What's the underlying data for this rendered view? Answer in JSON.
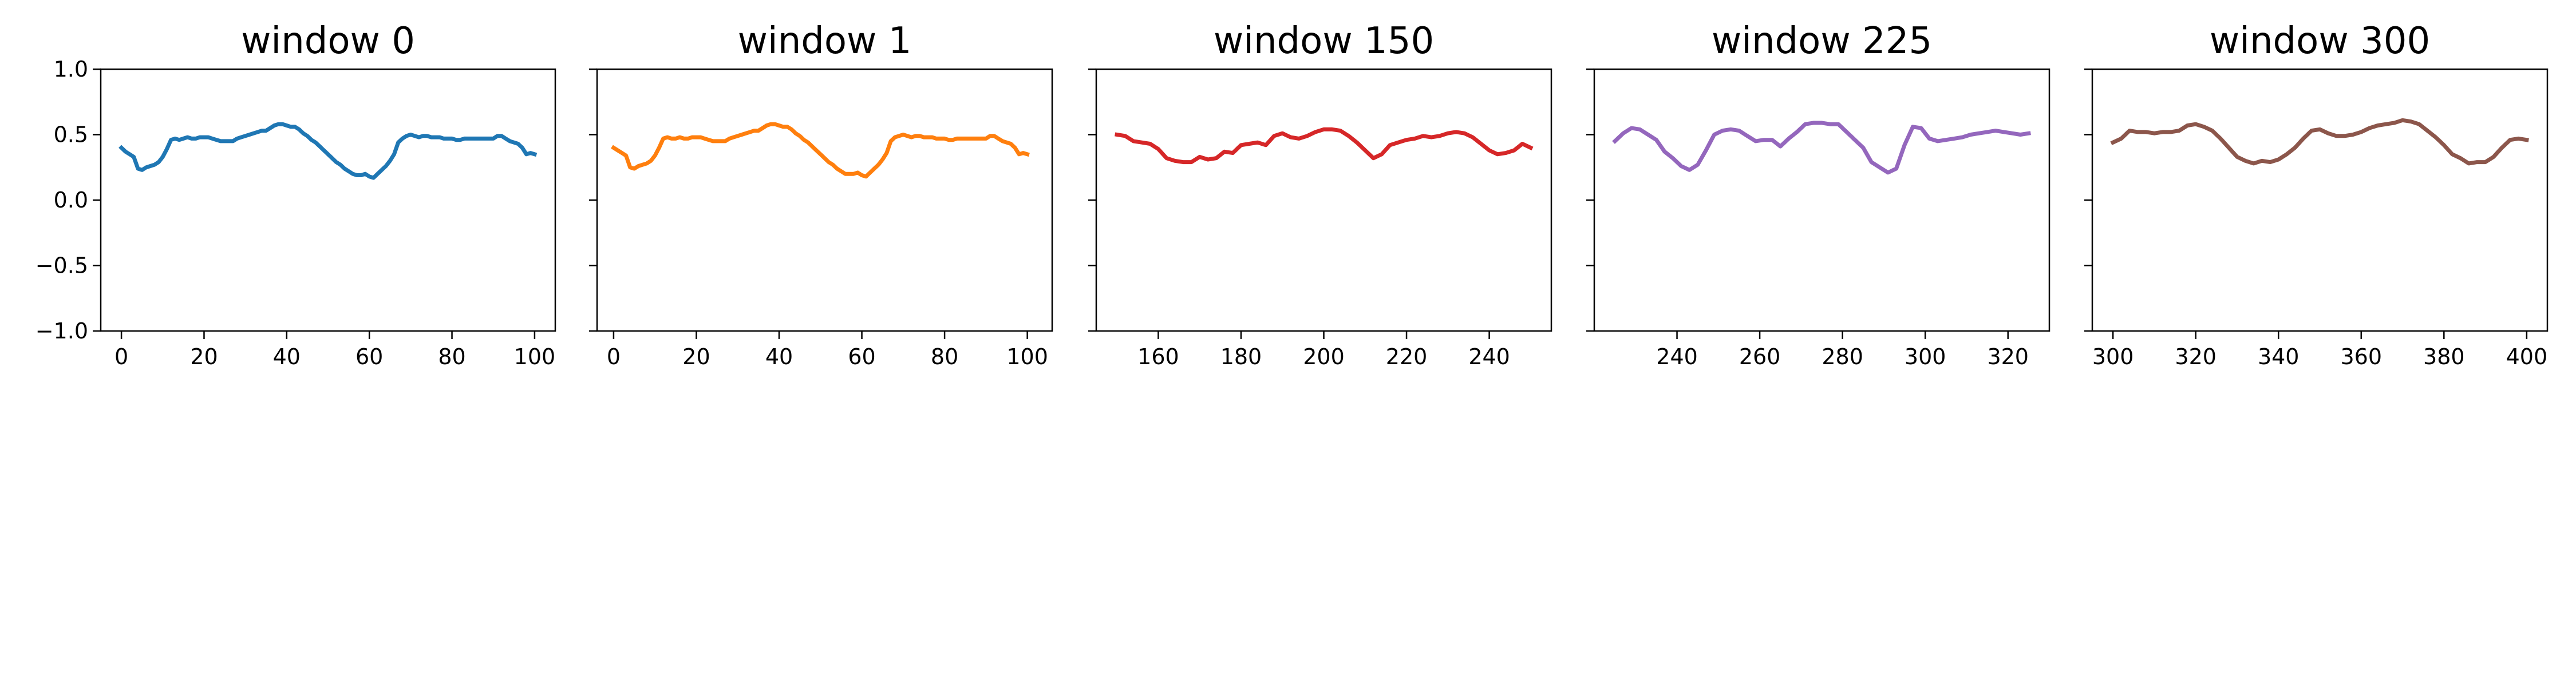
{
  "figure": {
    "background": "#ffffff"
  },
  "chart_data": [
    {
      "type": "line",
      "title": "window 0",
      "xlabel": "",
      "ylabel": "",
      "xlim": [
        -5,
        105
      ],
      "ylim": [
        -1.0,
        1.0
      ],
      "xticks": [
        0,
        20,
        40,
        60,
        80,
        100
      ],
      "yticks": [
        -1.0,
        -0.5,
        0.0,
        0.5,
        1.0
      ],
      "ytick_labels": [
        "−1.0",
        "−0.5",
        "0.0",
        "0.5",
        "1.0"
      ],
      "show_yticklabels": true,
      "grid": false,
      "series": [
        {
          "color": "#1f77b4",
          "x": [
            0,
            1,
            2,
            3,
            4,
            5,
            6,
            7,
            8,
            9,
            10,
            11,
            12,
            13,
            14,
            15,
            16,
            17,
            18,
            19,
            20,
            21,
            22,
            23,
            24,
            25,
            26,
            27,
            28,
            29,
            30,
            31,
            32,
            33,
            34,
            35,
            36,
            37,
            38,
            39,
            40,
            41,
            42,
            43,
            44,
            45,
            46,
            47,
            48,
            49,
            50,
            51,
            52,
            53,
            54,
            55,
            56,
            57,
            58,
            59,
            60,
            61,
            62,
            63,
            64,
            65,
            66,
            67,
            68,
            69,
            70,
            71,
            72,
            73,
            74,
            75,
            76,
            77,
            78,
            79,
            80,
            81,
            82,
            83,
            84,
            85,
            86,
            87,
            88,
            89,
            90,
            91,
            92,
            93,
            94,
            95,
            96,
            97,
            98,
            99,
            100
          ],
          "y": [
            0.4,
            0.37,
            0.35,
            0.33,
            0.24,
            0.23,
            0.25,
            0.26,
            0.27,
            0.29,
            0.33,
            0.39,
            0.46,
            0.47,
            0.46,
            0.47,
            0.48,
            0.47,
            0.47,
            0.48,
            0.48,
            0.48,
            0.47,
            0.46,
            0.45,
            0.45,
            0.45,
            0.45,
            0.47,
            0.48,
            0.49,
            0.5,
            0.51,
            0.52,
            0.53,
            0.53,
            0.55,
            0.57,
            0.58,
            0.58,
            0.57,
            0.56,
            0.56,
            0.54,
            0.51,
            0.49,
            0.46,
            0.44,
            0.41,
            0.38,
            0.35,
            0.32,
            0.29,
            0.27,
            0.24,
            0.22,
            0.2,
            0.19,
            0.19,
            0.2,
            0.18,
            0.17,
            0.2,
            0.23,
            0.26,
            0.3,
            0.35,
            0.44,
            0.47,
            0.49,
            0.5,
            0.49,
            0.48,
            0.49,
            0.49,
            0.48,
            0.48,
            0.48,
            0.47,
            0.47,
            0.47,
            0.46,
            0.46,
            0.47,
            0.47,
            0.47,
            0.47,
            0.47,
            0.47,
            0.47,
            0.47,
            0.49,
            0.49,
            0.47,
            0.45,
            0.44,
            0.43,
            0.4,
            0.35,
            0.36,
            0.35
          ]
        }
      ]
    },
    {
      "type": "line",
      "title": "window 1",
      "xlabel": "",
      "ylabel": "",
      "xlim": [
        -4,
        106
      ],
      "ylim": [
        -1.0,
        1.0
      ],
      "xticks": [
        0,
        20,
        40,
        60,
        80,
        100
      ],
      "yticks": [
        -1.0,
        -0.5,
        0.0,
        0.5,
        1.0
      ],
      "show_yticklabels": false,
      "grid": false,
      "series": [
        {
          "color": "#ff7f0e",
          "x": [
            0,
            1,
            2,
            3,
            4,
            5,
            6,
            7,
            8,
            9,
            10,
            11,
            12,
            13,
            14,
            15,
            16,
            17,
            18,
            19,
            20,
            21,
            22,
            23,
            24,
            25,
            26,
            27,
            28,
            29,
            30,
            31,
            32,
            33,
            34,
            35,
            36,
            37,
            38,
            39,
            40,
            41,
            42,
            43,
            44,
            45,
            46,
            47,
            48,
            49,
            50,
            51,
            52,
            53,
            54,
            55,
            56,
            57,
            58,
            59,
            60,
            61,
            62,
            63,
            64,
            65,
            66,
            67,
            68,
            69,
            70,
            71,
            72,
            73,
            74,
            75,
            76,
            77,
            78,
            79,
            80,
            81,
            82,
            83,
            84,
            85,
            86,
            87,
            88,
            89,
            90,
            91,
            92,
            93,
            94,
            95,
            96,
            97,
            98,
            99,
            100
          ],
          "y": [
            0.4,
            0.38,
            0.36,
            0.34,
            0.25,
            0.24,
            0.26,
            0.27,
            0.28,
            0.3,
            0.34,
            0.4,
            0.47,
            0.48,
            0.47,
            0.47,
            0.48,
            0.47,
            0.47,
            0.48,
            0.48,
            0.48,
            0.47,
            0.46,
            0.45,
            0.45,
            0.45,
            0.45,
            0.47,
            0.48,
            0.49,
            0.5,
            0.51,
            0.52,
            0.53,
            0.53,
            0.55,
            0.57,
            0.58,
            0.58,
            0.57,
            0.56,
            0.56,
            0.54,
            0.51,
            0.49,
            0.46,
            0.44,
            0.41,
            0.38,
            0.35,
            0.32,
            0.29,
            0.27,
            0.24,
            0.22,
            0.2,
            0.2,
            0.2,
            0.21,
            0.19,
            0.18,
            0.21,
            0.24,
            0.27,
            0.31,
            0.36,
            0.45,
            0.48,
            0.49,
            0.5,
            0.49,
            0.48,
            0.49,
            0.49,
            0.48,
            0.48,
            0.48,
            0.47,
            0.47,
            0.47,
            0.46,
            0.46,
            0.47,
            0.47,
            0.47,
            0.47,
            0.47,
            0.47,
            0.47,
            0.47,
            0.49,
            0.49,
            0.47,
            0.45,
            0.44,
            0.43,
            0.4,
            0.35,
            0.36,
            0.35
          ]
        }
      ]
    },
    {
      "type": "line",
      "title": "window 150",
      "xlabel": "",
      "ylabel": "",
      "xlim": [
        145,
        255
      ],
      "ylim": [
        -1.0,
        1.0
      ],
      "xticks": [
        160,
        180,
        200,
        220,
        240
      ],
      "yticks": [
        -1.0,
        -0.5,
        0.0,
        0.5,
        1.0
      ],
      "show_yticklabels": false,
      "grid": false,
      "series": [
        {
          "color": "#d62728",
          "x": [
            150,
            152,
            154,
            156,
            158,
            160,
            162,
            164,
            166,
            168,
            170,
            172,
            174,
            176,
            178,
            180,
            182,
            184,
            186,
            188,
            190,
            192,
            194,
            196,
            198,
            200,
            202,
            204,
            206,
            208,
            210,
            212,
            214,
            216,
            218,
            220,
            222,
            224,
            226,
            228,
            230,
            232,
            234,
            236,
            238,
            240,
            242,
            244,
            246,
            248,
            250
          ],
          "y": [
            0.5,
            0.49,
            0.45,
            0.44,
            0.43,
            0.39,
            0.32,
            0.3,
            0.29,
            0.29,
            0.33,
            0.31,
            0.32,
            0.37,
            0.36,
            0.42,
            0.43,
            0.44,
            0.42,
            0.49,
            0.51,
            0.48,
            0.47,
            0.49,
            0.52,
            0.54,
            0.54,
            0.53,
            0.49,
            0.44,
            0.38,
            0.32,
            0.35,
            0.42,
            0.44,
            0.46,
            0.47,
            0.49,
            0.48,
            0.49,
            0.51,
            0.52,
            0.51,
            0.48,
            0.43,
            0.38,
            0.35,
            0.36,
            0.38,
            0.43,
            0.4
          ]
        }
      ]
    },
    {
      "type": "line",
      "title": "window 225",
      "xlabel": "",
      "ylabel": "",
      "xlim": [
        220,
        330
      ],
      "ylim": [
        -1.0,
        1.0
      ],
      "xticks": [
        240,
        260,
        280,
        300,
        320
      ],
      "yticks": [
        -1.0,
        -0.5,
        0.0,
        0.5,
        1.0
      ],
      "show_yticklabels": false,
      "grid": false,
      "series": [
        {
          "color": "#9467bd",
          "x": [
            225,
            227,
            229,
            231,
            233,
            235,
            237,
            239,
            241,
            243,
            245,
            247,
            249,
            251,
            253,
            255,
            257,
            259,
            261,
            263,
            265,
            267,
            269,
            271,
            273,
            275,
            277,
            279,
            281,
            283,
            285,
            287,
            289,
            291,
            293,
            295,
            297,
            299,
            301,
            303,
            305,
            307,
            309,
            311,
            313,
            315,
            317,
            319,
            321,
            323,
            325
          ],
          "y": [
            0.45,
            0.51,
            0.55,
            0.54,
            0.5,
            0.46,
            0.37,
            0.32,
            0.26,
            0.23,
            0.27,
            0.38,
            0.5,
            0.53,
            0.54,
            0.53,
            0.49,
            0.45,
            0.46,
            0.46,
            0.41,
            0.47,
            0.52,
            0.58,
            0.59,
            0.59,
            0.58,
            0.58,
            0.52,
            0.46,
            0.4,
            0.29,
            0.25,
            0.21,
            0.24,
            0.42,
            0.56,
            0.55,
            0.47,
            0.45,
            0.46,
            0.47,
            0.48,
            0.5,
            0.51,
            0.52,
            0.53,
            0.52,
            0.51,
            0.5,
            0.51
          ]
        }
      ]
    },
    {
      "type": "line",
      "title": "window 300",
      "xlabel": "",
      "ylabel": "",
      "xlim": [
        295,
        405
      ],
      "ylim": [
        -1.0,
        1.0
      ],
      "xticks": [
        300,
        320,
        340,
        360,
        380,
        400
      ],
      "yticks": [
        -1.0,
        -0.5,
        0.0,
        0.5,
        1.0
      ],
      "show_yticklabels": false,
      "grid": false,
      "series": [
        {
          "color": "#8c564b",
          "x": [
            300,
            302,
            304,
            306,
            308,
            310,
            312,
            314,
            316,
            318,
            320,
            322,
            324,
            326,
            328,
            330,
            332,
            334,
            336,
            338,
            340,
            342,
            344,
            346,
            348,
            350,
            352,
            354,
            356,
            358,
            360,
            362,
            364,
            366,
            368,
            370,
            372,
            374,
            376,
            378,
            380,
            382,
            384,
            386,
            388,
            390,
            392,
            394,
            396,
            398,
            400
          ],
          "y": [
            0.44,
            0.47,
            0.53,
            0.52,
            0.52,
            0.51,
            0.52,
            0.52,
            0.53,
            0.57,
            0.58,
            0.56,
            0.53,
            0.47,
            0.4,
            0.33,
            0.3,
            0.28,
            0.3,
            0.29,
            0.31,
            0.35,
            0.4,
            0.47,
            0.53,
            0.54,
            0.51,
            0.49,
            0.49,
            0.5,
            0.52,
            0.55,
            0.57,
            0.58,
            0.59,
            0.61,
            0.6,
            0.58,
            0.53,
            0.48,
            0.42,
            0.35,
            0.32,
            0.28,
            0.29,
            0.29,
            0.33,
            0.4,
            0.46,
            0.47,
            0.46
          ]
        }
      ]
    }
  ]
}
